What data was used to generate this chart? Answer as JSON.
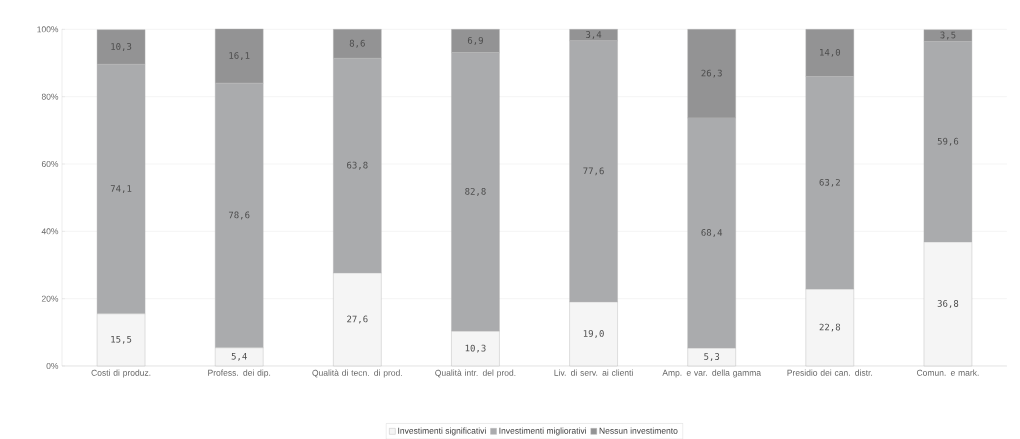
{
  "chart_data": {
    "type": "bar",
    "stacked": true,
    "categories": [
      "Costi di produz.",
      "Profess. dei dip.",
      "Qualità di tecn. di prod.",
      "Qualità intr. del prod.",
      "Liv. di serv. ai clienti",
      "Amp. e var. della gamma",
      "Presidio dei can. distr.",
      "Comun. e mark."
    ],
    "series": [
      {
        "name": "Investimenti significativi",
        "color": "#f5f5f5",
        "values": [
          15.5,
          5.4,
          27.6,
          10.3,
          19.0,
          5.3,
          22.8,
          36.8
        ],
        "value_labels": [
          "15,5",
          "5,4",
          "27,6",
          "10,3",
          "19,0",
          "5,3",
          "22,8",
          "36,8"
        ]
      },
      {
        "name": "Investimenti migliorativi",
        "color": "#aaabad",
        "values": [
          74.1,
          78.6,
          63.8,
          82.8,
          77.6,
          68.4,
          63.2,
          59.6
        ],
        "value_labels": [
          "74,1",
          "78,6",
          "63,8",
          "82,8",
          "77,6",
          "68,4",
          "63,2",
          "59,6"
        ]
      },
      {
        "name": "Nessun investimento",
        "color": "#939394",
        "values": [
          10.3,
          16.1,
          8.6,
          6.9,
          3.4,
          26.3,
          14.0,
          3.5
        ],
        "value_labels": [
          "10,3",
          "16,1",
          "8,6",
          "6,9",
          "3,4",
          "26,3",
          "14,0",
          "3,5"
        ]
      }
    ],
    "ylim": [
      0,
      100.1
    ],
    "yticks": [
      {
        "value": 0,
        "label": "0%"
      },
      {
        "value": 20,
        "label": "20%"
      },
      {
        "value": 40,
        "label": "40%"
      },
      {
        "value": 60,
        "label": "60%"
      },
      {
        "value": 80,
        "label": "80%"
      },
      {
        "value": 100,
        "label": "100%"
      }
    ],
    "grid": "y",
    "legend": "bottom"
  }
}
